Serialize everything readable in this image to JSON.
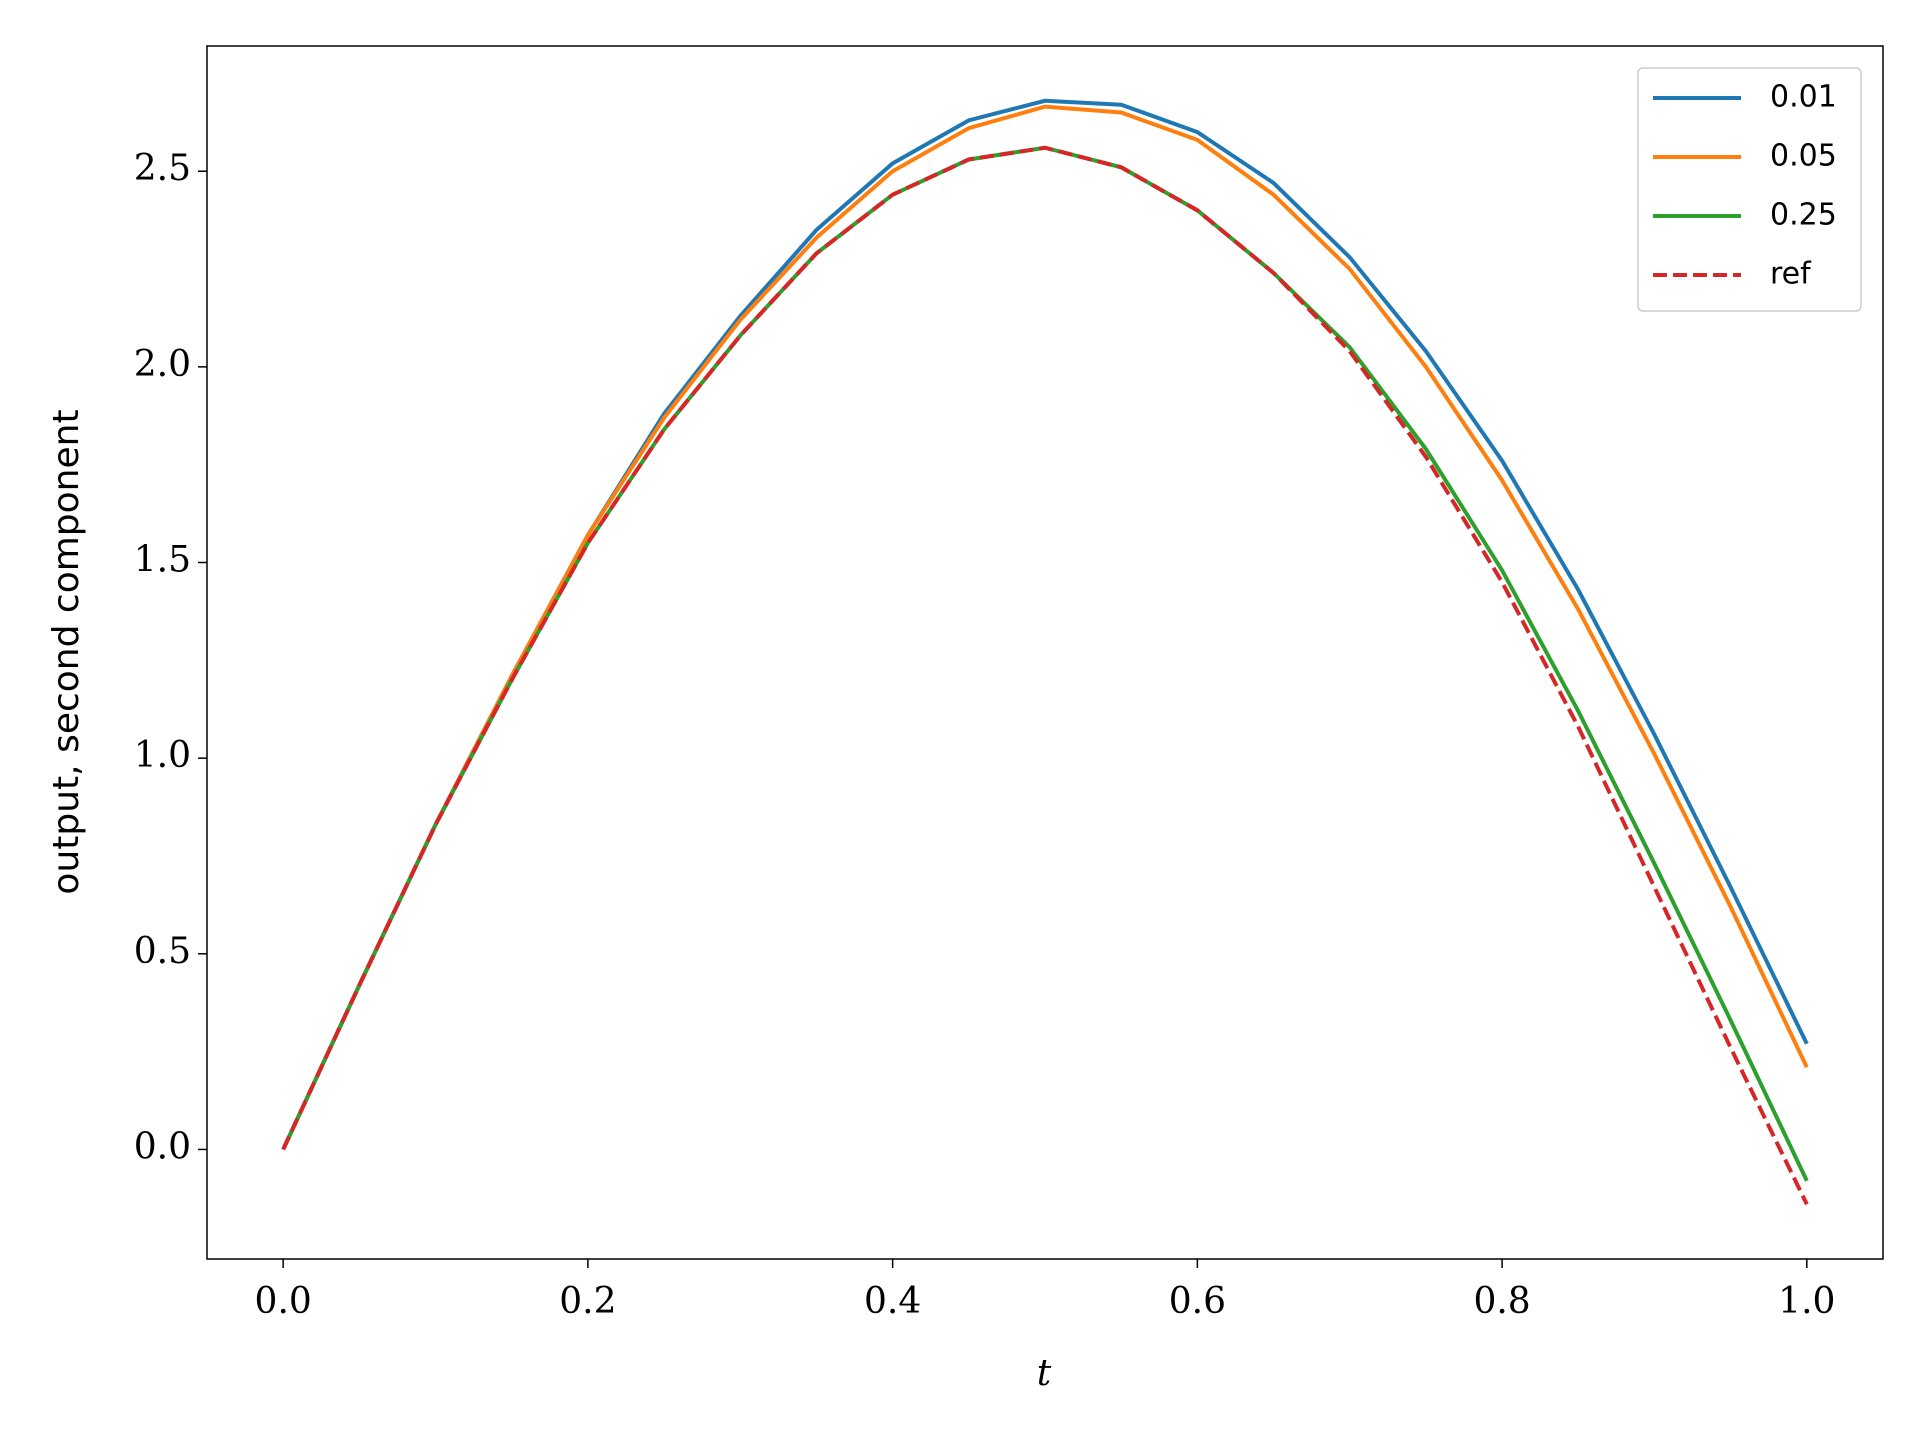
{
  "chart_data": {
    "type": "line",
    "xlabel": "t",
    "ylabel": "output, second component",
    "x": [
      0,
      0.05,
      0.1,
      0.15,
      0.2,
      0.25,
      0.3,
      0.35,
      0.4,
      0.45,
      0.5,
      0.55,
      0.6,
      0.65,
      0.7,
      0.75,
      0.8,
      0.85,
      0.9,
      0.95,
      1.0
    ],
    "series": [
      {
        "name": "0.01",
        "color": "#1f77b4",
        "dash": false,
        "values": [
          0,
          0.42,
          0.83,
          1.21,
          1.57,
          1.88,
          2.13,
          2.35,
          2.52,
          2.63,
          2.68,
          2.67,
          2.6,
          2.47,
          2.28,
          2.04,
          1.76,
          1.43,
          1.06,
          0.67,
          0.27
        ]
      },
      {
        "name": "0.05",
        "color": "#ff7f0e",
        "dash": false,
        "values": [
          0,
          0.42,
          0.83,
          1.21,
          1.57,
          1.87,
          2.12,
          2.33,
          2.5,
          2.61,
          2.665,
          2.65,
          2.58,
          2.44,
          2.25,
          2.0,
          1.71,
          1.38,
          1.01,
          0.62,
          0.21
        ]
      },
      {
        "name": "0.25",
        "color": "#2ca02c",
        "dash": false,
        "values": [
          0,
          0.42,
          0.83,
          1.2,
          1.55,
          1.84,
          2.08,
          2.29,
          2.44,
          2.53,
          2.56,
          2.51,
          2.4,
          2.24,
          2.05,
          1.79,
          1.48,
          1.12,
          0.73,
          0.33,
          -0.08
        ]
      },
      {
        "name": "ref",
        "color": "#d62728",
        "dash": true,
        "values": [
          0,
          0.42,
          0.83,
          1.2,
          1.55,
          1.84,
          2.08,
          2.29,
          2.44,
          2.53,
          2.56,
          2.51,
          2.4,
          2.24,
          2.04,
          1.77,
          1.45,
          1.08,
          0.67,
          0.26,
          -0.14
        ]
      }
    ],
    "xlim": [
      -0.05,
      1.05
    ],
    "ylim": [
      -0.28,
      2.82
    ],
    "xticks": [
      {
        "value": 0,
        "label": "0.0"
      },
      0.2,
      0.4,
      0.6,
      0.8,
      {
        "value": 1,
        "label": "1.0"
      }
    ],
    "yticks": [
      {
        "value": 0,
        "label": "0.0"
      },
      0.5,
      {
        "value": 1,
        "label": "1.0"
      },
      1.5,
      {
        "value": 2,
        "label": "2.0"
      },
      2.5
    ],
    "legend": "upper right",
    "grid": false
  }
}
